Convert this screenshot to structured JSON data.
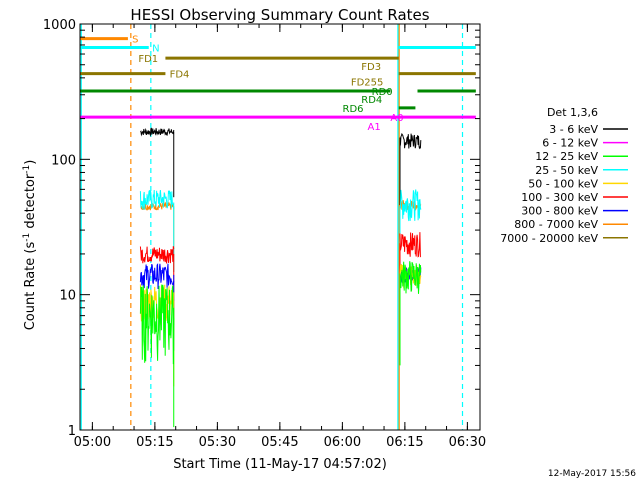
{
  "chart_data": {
    "type": "line",
    "title": "HESSI Observing Summary Count Rates",
    "xlabel": "Start Time (11-May-17 04:57:02)",
    "ylabel_main": "Count Rate (s",
    "ylabel_sup1": "-1",
    "ylabel_mid": " detector",
    "ylabel_sup2": "-1",
    "ylabel_end": ")",
    "yscale": "log",
    "xlim_minutes": [
      0,
      96
    ],
    "ylim": [
      1,
      1000
    ],
    "x_ticks": [
      {
        "label": "05:00",
        "min": 2.97
      },
      {
        "label": "05:15",
        "min": 17.97
      },
      {
        "label": "05:30",
        "min": 32.97
      },
      {
        "label": "05:45",
        "min": 47.97
      },
      {
        "label": "06:00",
        "min": 62.97
      },
      {
        "label": "06:15",
        "min": 77.97
      },
      {
        "label": "06:30",
        "min": 92.97
      }
    ],
    "y_ticks": [
      {
        "label": "1",
        "value": 1
      },
      {
        "label": "10",
        "value": 10
      },
      {
        "label": "100",
        "value": 100
      },
      {
        "label": "1000",
        "value": 1000
      }
    ],
    "legend_title": "Det 1,3,6",
    "legend_placement": "right",
    "series": [
      {
        "name": "3 - 6 keV",
        "color": "#000000",
        "seg1": [
          150,
          160,
          170
        ],
        "seg2": [
          120,
          145,
          155
        ]
      },
      {
        "name": "6 - 12 keV",
        "color": "#ff00ff",
        "seg1": [],
        "seg2": []
      },
      {
        "name": "12 - 25 keV",
        "color": "#00ff00",
        "seg1": [
          3,
          8,
          12
        ],
        "seg2": [
          10,
          14,
          18
        ]
      },
      {
        "name": "25 - 50 keV",
        "color": "#00ffff",
        "seg1": [
          42,
          48,
          60
        ],
        "seg2": [
          35,
          45,
          60
        ]
      },
      {
        "name": "50 - 100 keV",
        "color": "#ffd700",
        "seg1": [
          6,
          9,
          12
        ],
        "seg2": [
          11,
          14,
          17
        ]
      },
      {
        "name": "100 - 300 keV",
        "color": "#ff0000",
        "seg1": [
          17,
          20,
          23
        ],
        "seg2": [
          19,
          24,
          29
        ]
      },
      {
        "name": "300 - 800 keV",
        "color": "#0000ff",
        "seg1": [
          11,
          14,
          17
        ],
        "seg2": [
          12,
          14,
          16
        ]
      },
      {
        "name": "800 - 7000 keV",
        "color": "#ff8800",
        "seg1": [
          42,
          45,
          48
        ],
        "seg2": [
          42,
          46,
          50
        ]
      },
      {
        "name": "7000 - 20000 keV",
        "color": "#8b7500",
        "seg1": [],
        "seg2": []
      }
    ],
    "flags": [
      {
        "name": "S",
        "color": "#ff8800",
        "y_value": 780,
        "segments": [
          [
            0,
            11.5
          ]
        ],
        "label_min": 12.5,
        "label_dy": 0
      },
      {
        "name": "N",
        "color": "#00ffff",
        "y_value": 670,
        "segments": [
          [
            0,
            16.5
          ],
          [
            76.5,
            95
          ]
        ],
        "label_min": 17.3,
        "label_dy": 0
      },
      {
        "name": "FD1",
        "color": "#8b7500",
        "y_value": 560,
        "segments": [
          [
            20.5,
            76.5
          ]
        ],
        "label_min": 14.0,
        "label_dy": 0
      },
      {
        "name": "FD3",
        "color": "#8b7500",
        "y_value": 560,
        "segments": [],
        "label_min": 67.5,
        "label_dy": 8
      },
      {
        "name": "FD4",
        "color": "#8b7500",
        "y_value": 430,
        "segments": [
          [
            0,
            20.5
          ],
          [
            76.5,
            95
          ]
        ],
        "label_min": 21.5,
        "label_dy": 0
      },
      {
        "name": "FD255",
        "color": "#8b7500",
        "y_value": 430,
        "segments": [],
        "label_min": 65.0,
        "label_dy": 8
      },
      {
        "name": "RD0",
        "color": "#008800",
        "y_value": 320,
        "segments": [
          [
            0,
            74.5
          ],
          [
            81,
            95
          ]
        ],
        "label_min": 70.0,
        "label_dy": 0
      },
      {
        "name": "RD4",
        "color": "#008800",
        "y_value": 320,
        "segments": [],
        "label_min": 67.5,
        "label_dy": 8
      },
      {
        "name": "RD6",
        "color": "#008800",
        "y_value": 240,
        "segments": [
          [
            76.5,
            80.5
          ]
        ],
        "label_min": 63.0,
        "label_dy": 0
      },
      {
        "name": "A1",
        "color": "#ff00ff",
        "y_value": 205,
        "segments": [
          [
            0,
            95
          ]
        ],
        "label_min": 69.0,
        "label_dy": 9
      },
      {
        "name": "A0",
        "color": "#ff00ff",
        "y_value": 205,
        "segments": [],
        "label_min": 74.5,
        "label_dy": 0
      }
    ],
    "vlines": [
      {
        "min": 0.3,
        "color": "#00ffff",
        "dash": false
      },
      {
        "min": 12.2,
        "color": "#ff8800",
        "dash": true
      },
      {
        "min": 17.0,
        "color": "#00ffff",
        "dash": true
      },
      {
        "min": 76.3,
        "color": "#00ffff",
        "dash": false
      },
      {
        "min": 76.6,
        "color": "#ff8800",
        "dash": false
      },
      {
        "min": 91.8,
        "color": "#00ffff",
        "dash": true
      }
    ],
    "segments_range": {
      "seg1": [
        14.5,
        22.5
      ],
      "seg2": [
        76.8,
        81.8
      ]
    },
    "footer": "12-May-2017 15:56"
  }
}
